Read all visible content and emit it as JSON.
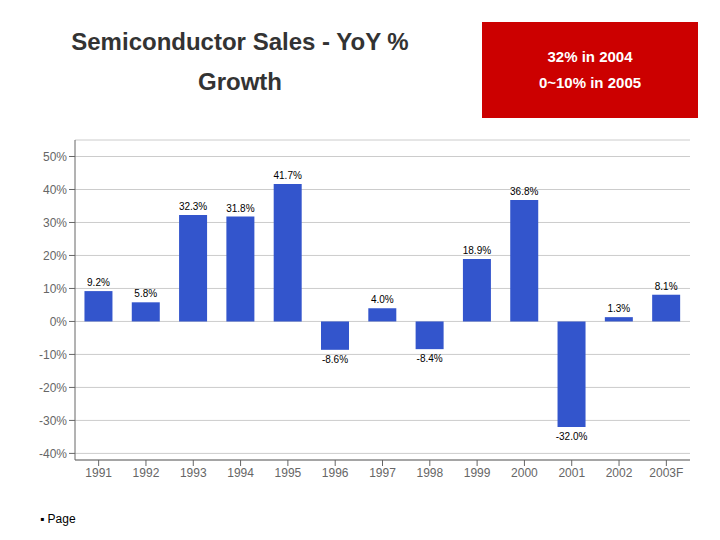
{
  "chart_data": {
    "type": "bar",
    "title": "Semiconductor Sales - YoY %\nGrowth",
    "annotations": [
      {
        "text": "32% in 2004\n0~10% in 2005",
        "color": "#CC0000"
      },
      {
        "text": "▪ Page"
      }
    ],
    "categories": [
      "1991",
      "1992",
      "1993",
      "1994",
      "1995",
      "1996",
      "1997",
      "1998",
      "1999",
      "2000",
      "2001",
      "2002",
      "2003F"
    ],
    "values": [
      9.2,
      5.8,
      32.3,
      31.8,
      41.7,
      -8.6,
      4.0,
      -8.4,
      18.9,
      36.8,
      -32.0,
      1.3,
      8.1
    ],
    "value_labels": [
      "9.2%",
      "5.8%",
      "32.3%",
      "31.8%",
      "41.7%",
      "-8.6%",
      "4.0%",
      "-8.4%",
      "18.9%",
      "36.8%",
      "-32.0%",
      "1.3%",
      "8.1%"
    ],
    "data_labels": true,
    "color": "#3355CC",
    "ylim": [
      -42,
      55
    ],
    "yticks": [
      {
        "value": -40,
        "label": "-40%"
      },
      {
        "value": -30,
        "label": "-30%"
      },
      {
        "value": -20,
        "label": "-20%"
      },
      {
        "value": -10,
        "label": "-10%"
      },
      {
        "value": 0,
        "label": "0%"
      },
      {
        "value": 10,
        "label": "10%"
      },
      {
        "value": 20,
        "label": "20%"
      },
      {
        "value": 30,
        "label": "30%"
      },
      {
        "value": 40,
        "label": "40%"
      },
      {
        "value": 50,
        "label": "50%"
      }
    ],
    "grid": true
  }
}
